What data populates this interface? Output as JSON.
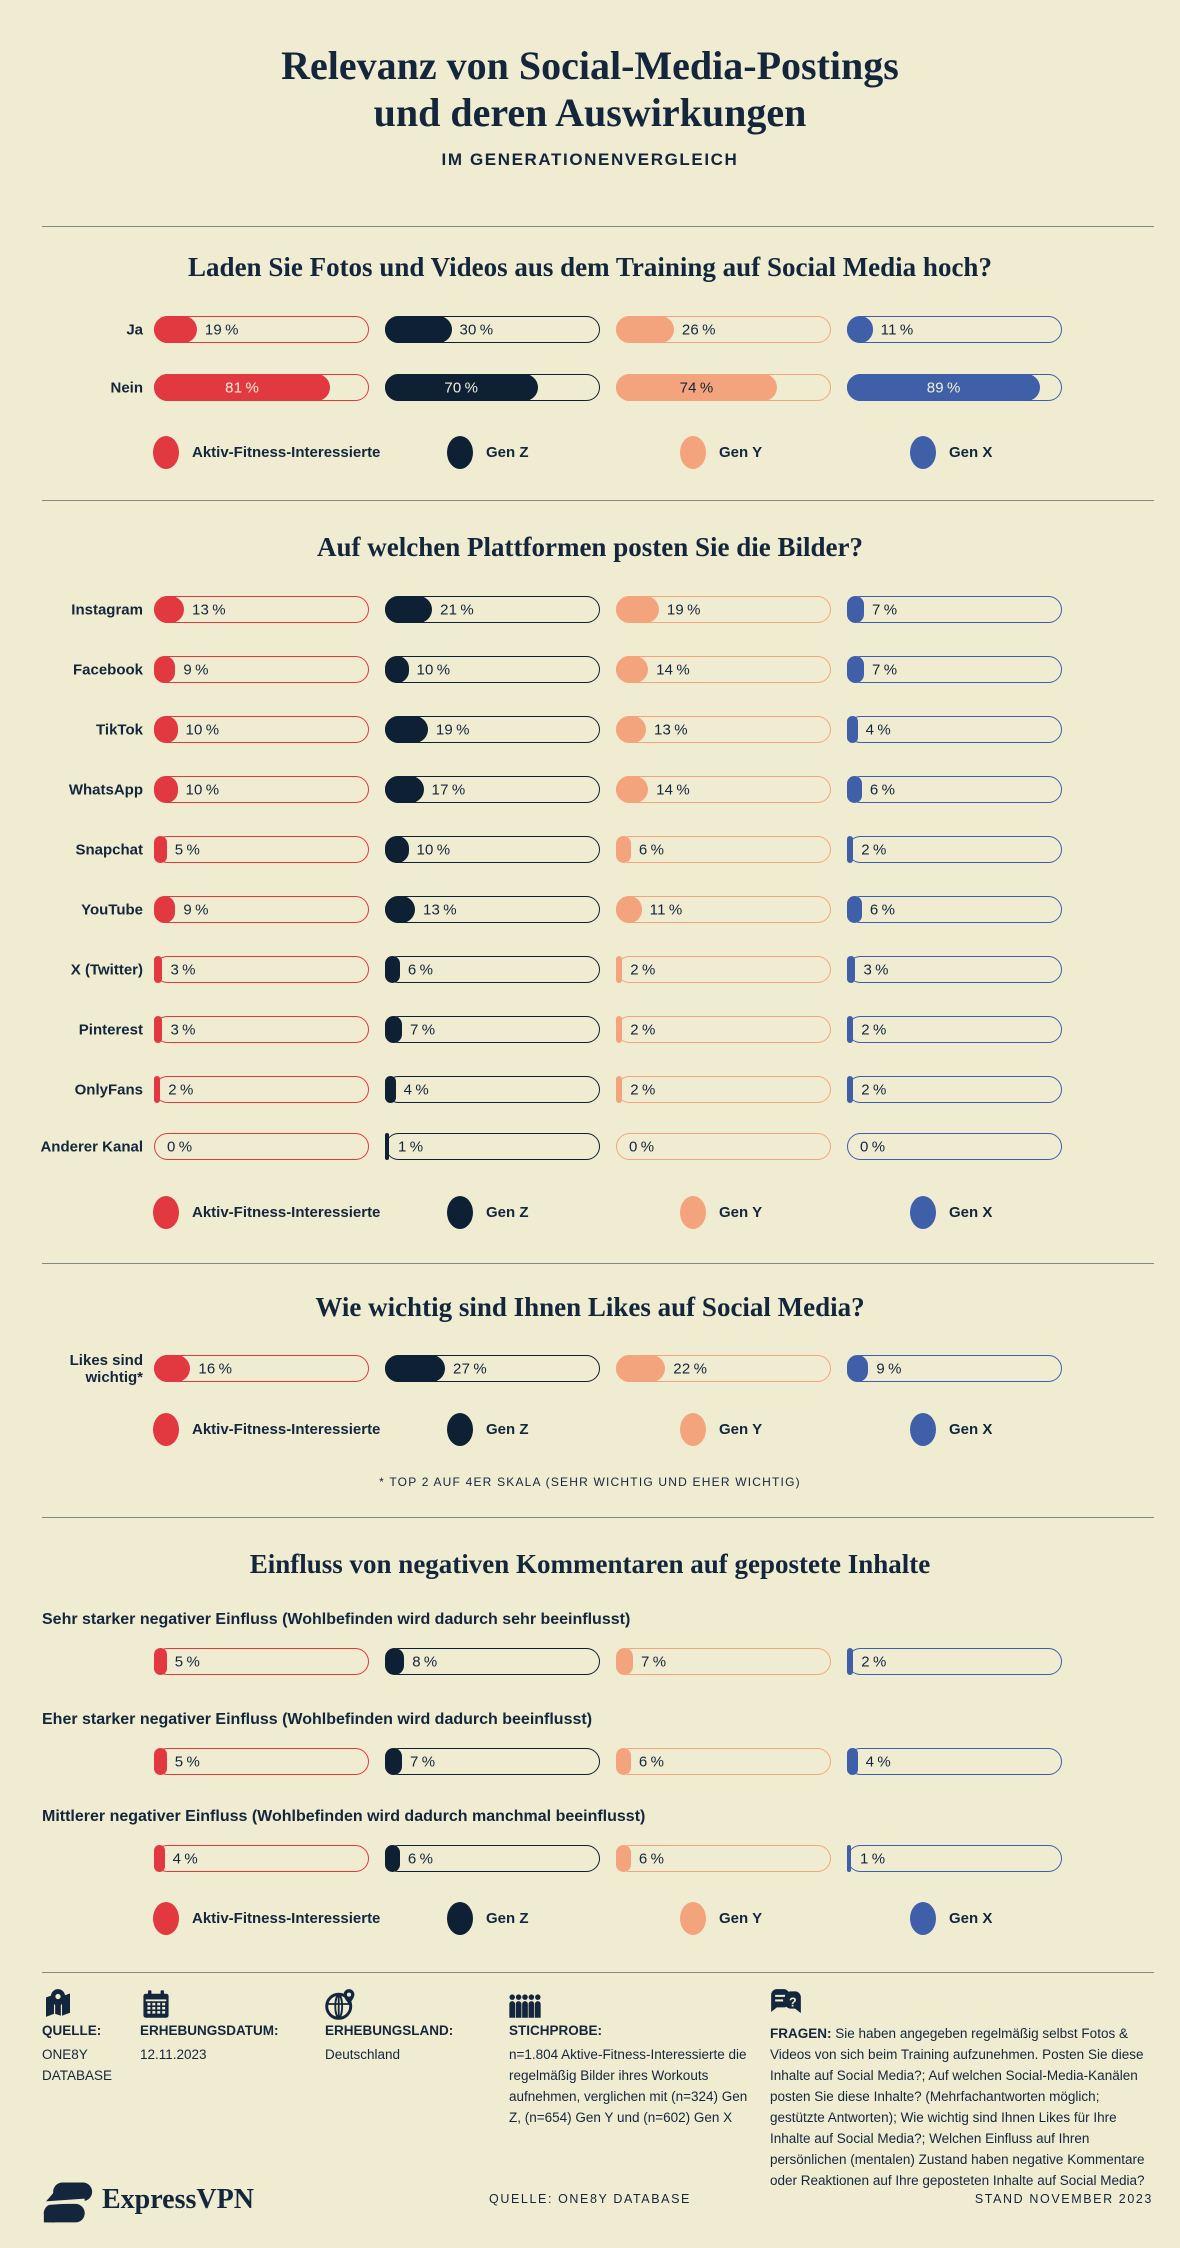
{
  "page": {
    "background": "#f0ecd2",
    "ink": "#13263c",
    "cream_text": "#f2eed6"
  },
  "header": {
    "title_line1": "Relevanz von Social-Media-Postings",
    "title_line2": "und deren Auswirkungen",
    "subtitle": "IM GENERATIONENVERGLEICH"
  },
  "legend": {
    "items": [
      {
        "label": "Aktiv-Fitness-Interessierte",
        "color": "#e23940"
      },
      {
        "label": "Gen Z",
        "color": "#0e2033"
      },
      {
        "label": "Gen Y",
        "color": "#f4a47c"
      },
      {
        "label": "Gen X",
        "color": "#3f5fa9"
      }
    ]
  },
  "chart_data": [
    {
      "type": "bar",
      "title": "Laden Sie Fotos und Videos aus dem Training auf Social Media hoch?",
      "unit": "%",
      "xlim": [
        0,
        100
      ],
      "categories": [
        "Ja",
        "Nein"
      ],
      "series": [
        {
          "name": "Aktiv-Fitness-Interessierte",
          "color": "#e23940",
          "values": [
            19,
            81
          ]
        },
        {
          "name": "Gen Z",
          "color": "#0e2033",
          "values": [
            30,
            70
          ]
        },
        {
          "name": "Gen Y",
          "color": "#f4a47c",
          "values": [
            26,
            74
          ]
        },
        {
          "name": "Gen X",
          "color": "#3f5fa9",
          "values": [
            11,
            89
          ]
        }
      ]
    },
    {
      "type": "bar",
      "title": "Auf welchen Plattformen posten Sie die Bilder?",
      "unit": "%",
      "xlim": [
        0,
        100
      ],
      "categories": [
        "Instagram",
        "Facebook",
        "TikTok",
        "WhatsApp",
        "Snapchat",
        "YouTube",
        "X (Twitter)",
        "Pinterest",
        "OnlyFans",
        "Anderer Kanal"
      ],
      "series": [
        {
          "name": "Aktiv-Fitness-Interessierte",
          "color": "#e23940",
          "values": [
            13,
            9,
            10,
            10,
            5,
            9,
            3,
            3,
            2,
            0
          ]
        },
        {
          "name": "Gen Z",
          "color": "#0e2033",
          "values": [
            21,
            10,
            19,
            17,
            10,
            13,
            6,
            7,
            4,
            1
          ]
        },
        {
          "name": "Gen Y",
          "color": "#f4a47c",
          "values": [
            19,
            14,
            13,
            14,
            6,
            11,
            2,
            2,
            2,
            0
          ]
        },
        {
          "name": "Gen X",
          "color": "#3f5fa9",
          "values": [
            7,
            7,
            4,
            6,
            2,
            6,
            3,
            2,
            2,
            0
          ]
        }
      ]
    },
    {
      "type": "bar",
      "title": "Wie wichtig sind Ihnen Likes auf Social Media?",
      "unit": "%",
      "xlim": [
        0,
        100
      ],
      "categories": [
        "Likes sind wichtig*"
      ],
      "series": [
        {
          "name": "Aktiv-Fitness-Interessierte",
          "color": "#e23940",
          "values": [
            16
          ]
        },
        {
          "name": "Gen Z",
          "color": "#0e2033",
          "values": [
            27
          ]
        },
        {
          "name": "Gen Y",
          "color": "#f4a47c",
          "values": [
            22
          ]
        },
        {
          "name": "Gen X",
          "color": "#3f5fa9",
          "values": [
            9
          ]
        }
      ],
      "footnote": "* TOP 2 AUF 4ER SKALA (SEHR WICHTIG UND EHER WICHTIG)"
    },
    {
      "type": "bar",
      "title": "Einfluss von negativen Kommentaren auf gepostete Inhalte",
      "unit": "%",
      "xlim": [
        0,
        100
      ],
      "categories": [
        "Sehr starker negativer Einfluss (Wohlbefinden wird dadurch sehr beeinflusst)",
        "Eher starker negativer Einfluss (Wohlbefinden wird dadurch beeinflusst)",
        "Mittlerer negativer Einfluss (Wohlbefinden wird dadurch manchmal beeinflusst)"
      ],
      "series": [
        {
          "name": "Aktiv-Fitness-Interessierte",
          "color": "#e23940",
          "values": [
            5,
            5,
            4
          ]
        },
        {
          "name": "Gen Z",
          "color": "#0e2033",
          "values": [
            8,
            7,
            6
          ]
        },
        {
          "name": "Gen Y",
          "color": "#f4a47c",
          "values": [
            7,
            6,
            6
          ]
        },
        {
          "name": "Gen X",
          "color": "#3f5fa9",
          "values": [
            2,
            4,
            1
          ]
        }
      ]
    }
  ],
  "footer": {
    "columns": [
      {
        "icon": "map-pin-icon",
        "label": "QUELLE:",
        "value": "ONE8Y DATABASE"
      },
      {
        "icon": "calendar-icon",
        "label": "ERHEBUNGSDATUM:",
        "value": "12.11.2023"
      },
      {
        "icon": "globe-pin-icon",
        "label": "ERHEBUNGSLAND:",
        "value": "Deutschland"
      },
      {
        "icon": "people-icon",
        "label": "STICHPROBE:",
        "value": "n=1.804 Aktive-Fitness-Interessierte die regelmäßig Bilder ihres Workouts aufnehmen, verglichen mit (n=324) Gen Z, (n=654) Gen Y und (n=602) Gen X"
      },
      {
        "icon": "chat-question-icon",
        "label": "FRAGEN:",
        "value": "Sie haben angegeben regelmäßig selbst Fotos & Videos von sich beim Training aufzunehmen. Posten Sie diese Inhalte auf Social Media?; Auf welchen Social-Media-Kanälen posten Sie diese Inhalte? (Mehrfachantworten möglich; gestützte Antworten); Wie wichtig sind Ihnen Likes für Ihre Inhalte auf Social Media?; Welchen Einfluss auf Ihren persönlichen (mentalen) Zustand haben negative Kommentare oder Reaktionen auf Ihre geposteten Inhalte auf Social Media?"
      }
    ]
  },
  "bottom_bar": {
    "brand": "ExpressVPN",
    "source": "QUELLE: ONE8Y DATABASE",
    "stand": "STAND NOVEMBER 2023"
  }
}
